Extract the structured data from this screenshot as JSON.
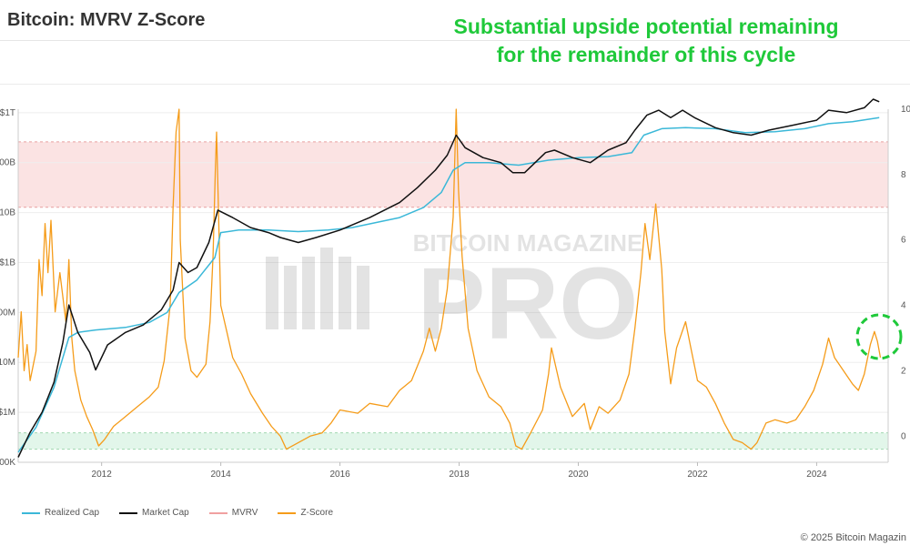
{
  "header": {
    "title": "Bitcoin: MVRV Z-Score",
    "annotation_line1": "Substantial upside potential remaining",
    "annotation_line2": "for the remainder of this cycle"
  },
  "watermark": {
    "top_text": "BITCOIN MAGAZINE",
    "main_text": "PRO"
  },
  "footer": {
    "copyright": "© 2025 Bitcoin Magazin"
  },
  "colors": {
    "realized_cap": "#3bb8d8",
    "market_cap": "#111111",
    "mvrv": "#f0a0a0",
    "zscore": "#f59c1a",
    "red_band": "#fbe3e3",
    "green_band": "#e2f6ea",
    "annotation": "#1fc93a"
  },
  "chart_data": {
    "type": "line",
    "x_range": [
      2010.6,
      2025.2
    ],
    "x_ticks": [
      {
        "value": 2012,
        "label": "2012"
      },
      {
        "value": 2014,
        "label": "2014"
      },
      {
        "value": 2016,
        "label": "2016"
      },
      {
        "value": 2018,
        "label": "2018"
      },
      {
        "value": 2020,
        "label": "2020"
      },
      {
        "value": 2022,
        "label": "2022"
      },
      {
        "value": 2024,
        "label": "2024"
      }
    ],
    "left_axis": {
      "scale": "log",
      "range_log10": [
        5,
        12.07
      ],
      "ticks": [
        {
          "value_log10": 12,
          "label": "$1T"
        },
        {
          "value_log10": 11,
          "label": "00B"
        },
        {
          "value_log10": 10,
          "label": "10B"
        },
        {
          "value_log10": 9,
          "label": "$1B"
        },
        {
          "value_log10": 8,
          "label": "00M"
        },
        {
          "value_log10": 7,
          "label": "10M"
        },
        {
          "value_log10": 6,
          "label": "$1M"
        },
        {
          "value_log10": 5,
          "label": "00K"
        }
      ]
    },
    "right_axis": {
      "range": [
        -0.8,
        10
      ],
      "ticks": [
        {
          "value": 10,
          "label": "10"
        },
        {
          "value": 8,
          "label": "8"
        },
        {
          "value": 6,
          "label": "6"
        },
        {
          "value": 4,
          "label": "4"
        },
        {
          "value": 2,
          "label": "2"
        },
        {
          "value": 0,
          "label": "0"
        }
      ]
    },
    "bands": [
      {
        "name": "red",
        "from": 7,
        "to": 9
      },
      {
        "name": "green",
        "from": -0.4,
        "to": 0.1
      }
    ],
    "legend": [
      {
        "name": "Realized Cap",
        "color": "#3bb8d8"
      },
      {
        "name": "Market Cap",
        "color": "#111111"
      },
      {
        "name": "MVRV",
        "color": "#f0a0a0"
      },
      {
        "name": "Z-Score",
        "color": "#f59c1a"
      }
    ],
    "series": [
      {
        "name": "Market Cap",
        "axis": "left",
        "color": "#111111",
        "points": [
          [
            2010.6,
            5.1
          ],
          [
            2010.8,
            5.6
          ],
          [
            2011.0,
            6.0
          ],
          [
            2011.2,
            6.6
          ],
          [
            2011.35,
            7.4
          ],
          [
            2011.45,
            8.15
          ],
          [
            2011.6,
            7.6
          ],
          [
            2011.8,
            7.2
          ],
          [
            2011.9,
            6.85
          ],
          [
            2012.1,
            7.35
          ],
          [
            2012.4,
            7.6
          ],
          [
            2012.7,
            7.75
          ],
          [
            2013.0,
            8.05
          ],
          [
            2013.2,
            8.45
          ],
          [
            2013.3,
            9.0
          ],
          [
            2013.45,
            8.8
          ],
          [
            2013.6,
            8.9
          ],
          [
            2013.8,
            9.4
          ],
          [
            2013.95,
            10.05
          ],
          [
            2014.2,
            9.9
          ],
          [
            2014.5,
            9.7
          ],
          [
            2014.8,
            9.6
          ],
          [
            2015.0,
            9.5
          ],
          [
            2015.3,
            9.4
          ],
          [
            2015.6,
            9.5
          ],
          [
            2016.0,
            9.65
          ],
          [
            2016.5,
            9.9
          ],
          [
            2017.0,
            10.2
          ],
          [
            2017.3,
            10.5
          ],
          [
            2017.6,
            10.85
          ],
          [
            2017.8,
            11.15
          ],
          [
            2017.95,
            11.55
          ],
          [
            2018.1,
            11.3
          ],
          [
            2018.4,
            11.1
          ],
          [
            2018.7,
            11.0
          ],
          [
            2018.9,
            10.8
          ],
          [
            2019.1,
            10.8
          ],
          [
            2019.45,
            11.2
          ],
          [
            2019.6,
            11.25
          ],
          [
            2019.9,
            11.1
          ],
          [
            2020.2,
            11.0
          ],
          [
            2020.5,
            11.25
          ],
          [
            2020.8,
            11.4
          ],
          [
            2020.95,
            11.65
          ],
          [
            2021.15,
            11.95
          ],
          [
            2021.35,
            12.05
          ],
          [
            2021.55,
            11.9
          ],
          [
            2021.75,
            12.05
          ],
          [
            2021.95,
            11.9
          ],
          [
            2022.3,
            11.7
          ],
          [
            2022.6,
            11.6
          ],
          [
            2022.9,
            11.55
          ],
          [
            2023.2,
            11.65
          ],
          [
            2023.6,
            11.75
          ],
          [
            2024.0,
            11.85
          ],
          [
            2024.2,
            12.05
          ],
          [
            2024.5,
            12.0
          ],
          [
            2024.8,
            12.1
          ],
          [
            2024.95,
            12.27
          ],
          [
            2025.05,
            12.22
          ]
        ]
      },
      {
        "name": "Realized Cap",
        "axis": "left",
        "color": "#3bb8d8",
        "points": [
          [
            2010.6,
            5.2
          ],
          [
            2010.9,
            5.7
          ],
          [
            2011.2,
            6.5
          ],
          [
            2011.45,
            7.5
          ],
          [
            2011.6,
            7.6
          ],
          [
            2011.9,
            7.65
          ],
          [
            2012.4,
            7.7
          ],
          [
            2012.8,
            7.8
          ],
          [
            2013.1,
            8.0
          ],
          [
            2013.3,
            8.4
          ],
          [
            2013.6,
            8.65
          ],
          [
            2013.9,
            9.1
          ],
          [
            2014.0,
            9.6
          ],
          [
            2014.3,
            9.65
          ],
          [
            2014.8,
            9.65
          ],
          [
            2015.3,
            9.62
          ],
          [
            2015.8,
            9.65
          ],
          [
            2016.2,
            9.7
          ],
          [
            2016.6,
            9.8
          ],
          [
            2017.0,
            9.9
          ],
          [
            2017.4,
            10.1
          ],
          [
            2017.7,
            10.4
          ],
          [
            2017.9,
            10.85
          ],
          [
            2018.1,
            11.0
          ],
          [
            2018.5,
            11.0
          ],
          [
            2019.0,
            10.95
          ],
          [
            2019.5,
            11.05
          ],
          [
            2020.0,
            11.1
          ],
          [
            2020.5,
            11.12
          ],
          [
            2020.9,
            11.2
          ],
          [
            2021.1,
            11.55
          ],
          [
            2021.4,
            11.68
          ],
          [
            2021.8,
            11.7
          ],
          [
            2022.3,
            11.68
          ],
          [
            2022.8,
            11.6
          ],
          [
            2023.3,
            11.62
          ],
          [
            2023.8,
            11.68
          ],
          [
            2024.2,
            11.78
          ],
          [
            2024.6,
            11.82
          ],
          [
            2025.05,
            11.9
          ]
        ]
      },
      {
        "name": "Z-Score",
        "axis": "right",
        "color": "#f59c1a",
        "points": [
          [
            2010.6,
            2.4
          ],
          [
            2010.65,
            3.8
          ],
          [
            2010.7,
            2.0
          ],
          [
            2010.75,
            2.8
          ],
          [
            2010.8,
            1.7
          ],
          [
            2010.9,
            2.6
          ],
          [
            2010.95,
            5.4
          ],
          [
            2011.0,
            4.3
          ],
          [
            2011.05,
            6.5
          ],
          [
            2011.1,
            5.0
          ],
          [
            2011.15,
            6.6
          ],
          [
            2011.22,
            3.8
          ],
          [
            2011.3,
            5.0
          ],
          [
            2011.4,
            3.5
          ],
          [
            2011.45,
            5.4
          ],
          [
            2011.5,
            3.0
          ],
          [
            2011.55,
            2.0
          ],
          [
            2011.65,
            1.1
          ],
          [
            2011.75,
            0.6
          ],
          [
            2011.85,
            0.2
          ],
          [
            2011.95,
            -0.3
          ],
          [
            2012.05,
            -0.1
          ],
          [
            2012.2,
            0.3
          ],
          [
            2012.4,
            0.6
          ],
          [
            2012.6,
            0.9
          ],
          [
            2012.8,
            1.2
          ],
          [
            2012.95,
            1.5
          ],
          [
            2013.05,
            2.3
          ],
          [
            2013.15,
            4.0
          ],
          [
            2013.2,
            7.0
          ],
          [
            2013.25,
            9.3
          ],
          [
            2013.3,
            10.0
          ],
          [
            2013.32,
            6.0
          ],
          [
            2013.4,
            3.0
          ],
          [
            2013.5,
            2.0
          ],
          [
            2013.6,
            1.8
          ],
          [
            2013.75,
            2.2
          ],
          [
            2013.82,
            3.5
          ],
          [
            2013.87,
            5.5
          ],
          [
            2013.91,
            8.2
          ],
          [
            2013.93,
            9.3
          ],
          [
            2013.96,
            7.0
          ],
          [
            2014.0,
            4.0
          ],
          [
            2014.1,
            3.2
          ],
          [
            2014.2,
            2.4
          ],
          [
            2014.35,
            1.9
          ],
          [
            2014.5,
            1.3
          ],
          [
            2014.7,
            0.7
          ],
          [
            2014.85,
            0.3
          ],
          [
            2015.0,
            0.0
          ],
          [
            2015.1,
            -0.4
          ],
          [
            2015.3,
            -0.2
          ],
          [
            2015.5,
            0.0
          ],
          [
            2015.7,
            0.1
          ],
          [
            2015.85,
            0.4
          ],
          [
            2016.0,
            0.8
          ],
          [
            2016.3,
            0.7
          ],
          [
            2016.5,
            1.0
          ],
          [
            2016.8,
            0.9
          ],
          [
            2017.0,
            1.4
          ],
          [
            2017.2,
            1.7
          ],
          [
            2017.4,
            2.6
          ],
          [
            2017.5,
            3.3
          ],
          [
            2017.6,
            2.6
          ],
          [
            2017.7,
            3.3
          ],
          [
            2017.8,
            4.5
          ],
          [
            2017.9,
            6.7
          ],
          [
            2017.95,
            10.0
          ],
          [
            2017.99,
            7.5
          ],
          [
            2018.05,
            5.5
          ],
          [
            2018.15,
            3.3
          ],
          [
            2018.3,
            2.0
          ],
          [
            2018.5,
            1.2
          ],
          [
            2018.7,
            0.9
          ],
          [
            2018.85,
            0.4
          ],
          [
            2018.95,
            -0.3
          ],
          [
            2019.05,
            -0.4
          ],
          [
            2019.2,
            0.1
          ],
          [
            2019.4,
            0.8
          ],
          [
            2019.5,
            1.9
          ],
          [
            2019.55,
            2.7
          ],
          [
            2019.7,
            1.5
          ],
          [
            2019.9,
            0.6
          ],
          [
            2020.1,
            1.0
          ],
          [
            2020.2,
            0.2
          ],
          [
            2020.35,
            0.9
          ],
          [
            2020.5,
            0.7
          ],
          [
            2020.7,
            1.1
          ],
          [
            2020.85,
            1.9
          ],
          [
            2020.95,
            3.3
          ],
          [
            2021.05,
            5.0
          ],
          [
            2021.12,
            6.5
          ],
          [
            2021.2,
            5.4
          ],
          [
            2021.3,
            7.1
          ],
          [
            2021.4,
            5.1
          ],
          [
            2021.45,
            3.2
          ],
          [
            2021.55,
            1.6
          ],
          [
            2021.65,
            2.7
          ],
          [
            2021.8,
            3.5
          ],
          [
            2021.9,
            2.6
          ],
          [
            2022.0,
            1.7
          ],
          [
            2022.15,
            1.5
          ],
          [
            2022.3,
            1.0
          ],
          [
            2022.45,
            0.4
          ],
          [
            2022.6,
            -0.1
          ],
          [
            2022.75,
            -0.2
          ],
          [
            2022.9,
            -0.4
          ],
          [
            2023.0,
            -0.2
          ],
          [
            2023.15,
            0.4
          ],
          [
            2023.3,
            0.5
          ],
          [
            2023.5,
            0.4
          ],
          [
            2023.65,
            0.5
          ],
          [
            2023.8,
            0.9
          ],
          [
            2023.95,
            1.4
          ],
          [
            2024.1,
            2.2
          ],
          [
            2024.2,
            3.0
          ],
          [
            2024.3,
            2.4
          ],
          [
            2024.45,
            2.0
          ],
          [
            2024.6,
            1.6
          ],
          [
            2024.7,
            1.4
          ],
          [
            2024.8,
            1.9
          ],
          [
            2024.9,
            2.8
          ],
          [
            2024.97,
            3.2
          ],
          [
            2025.02,
            2.9
          ],
          [
            2025.07,
            2.4
          ]
        ]
      }
    ]
  }
}
